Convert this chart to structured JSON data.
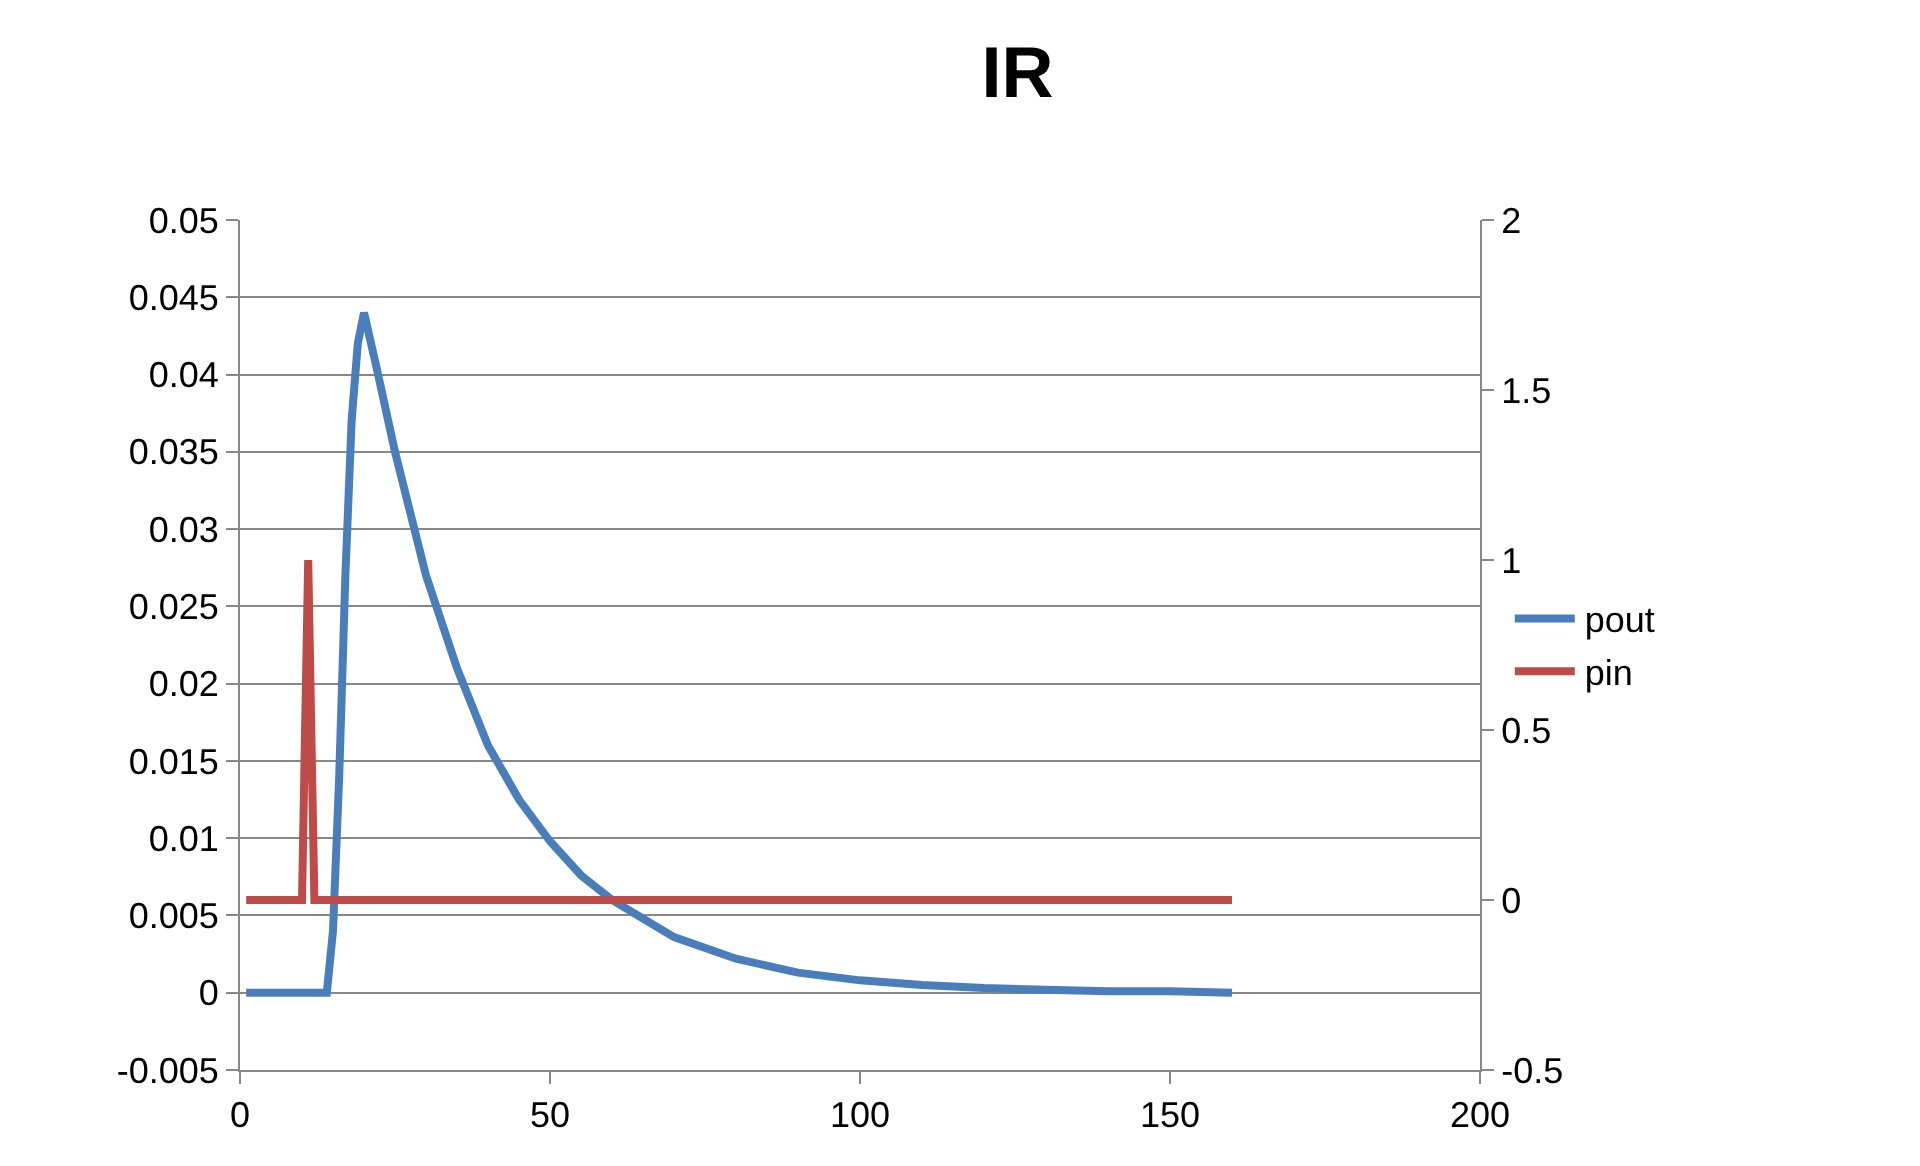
{
  "chart_data": {
    "type": "line",
    "title": "IR",
    "xlim": [
      0,
      200
    ],
    "xticks": [
      0,
      50,
      100,
      150,
      200
    ],
    "ylim": [
      -0.005,
      0.05
    ],
    "yticks": [
      -0.005,
      0,
      0.005,
      0.01,
      0.015,
      0.02,
      0.025,
      0.03,
      0.035,
      0.04,
      0.045,
      0.05
    ],
    "y2lim": [
      -0.5,
      2
    ],
    "y2ticks": [
      -0.5,
      0,
      0.5,
      1,
      1.5,
      2
    ],
    "grid": "y",
    "legend": "right",
    "marker": "none",
    "line_style": "solid",
    "series": [
      {
        "name": "pout",
        "color": "#4a7ebb",
        "x": [
          1,
          14,
          15,
          16,
          17,
          18,
          19,
          20,
          22,
          25,
          30,
          35,
          40,
          45,
          50,
          55,
          60,
          70,
          80,
          90,
          100,
          110,
          120,
          130,
          140,
          150,
          160
        ],
        "values": [
          0,
          0,
          0.004,
          0.014,
          0.027,
          0.037,
          0.042,
          0.044,
          0.0405,
          0.035,
          0.027,
          0.021,
          0.016,
          0.0125,
          0.0098,
          0.0076,
          0.006,
          0.0036,
          0.0022,
          0.0013,
          0.0008,
          0.0005,
          0.0003,
          0.0002,
          0.0001,
          0.0001,
          0
        ]
      },
      {
        "name": "pin",
        "color": "#be4b48",
        "axis": "y2",
        "x": [
          1,
          10,
          11,
          12,
          160
        ],
        "values": [
          0,
          0,
          1,
          0,
          0
        ]
      }
    ]
  }
}
